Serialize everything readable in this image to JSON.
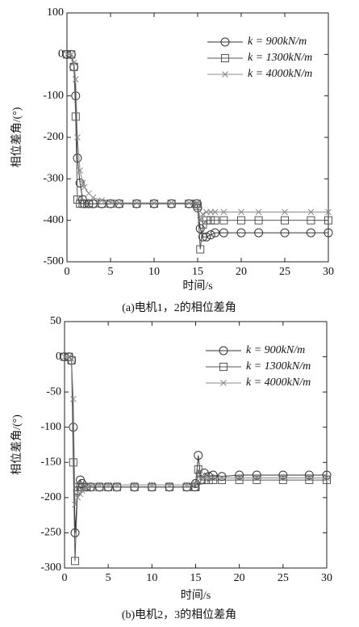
{
  "chart_data": [
    {
      "type": "line",
      "ylabel": "相位差角/(°)",
      "xlabel": "时间/s",
      "caption": "(a)电机1，2的相位差角",
      "x": [
        0,
        0.5,
        0.8,
        1,
        1.2,
        1.5,
        1.8,
        2,
        2.5,
        3,
        4,
        5,
        6,
        8,
        10,
        12,
        14,
        14.9,
        15,
        15.3,
        15.6,
        16,
        16.5,
        17,
        18,
        20,
        22,
        25,
        28,
        30
      ],
      "xlim": [
        0,
        30
      ],
      "xticks": [
        0,
        5,
        10,
        15,
        20,
        25,
        30
      ],
      "ylim": [
        -500,
        100
      ],
      "yticks": [
        -500,
        -400,
        -300,
        -200,
        -100,
        0,
        100
      ],
      "legend": "upper right",
      "series": [
        {
          "name": "k = 900kN/m",
          "color": "#333333",
          "marker": "circle",
          "values": [
            0,
            0,
            -30,
            -100,
            -250,
            -310,
            -350,
            -360,
            -360,
            -360,
            -360,
            -360,
            -360,
            -360,
            -360,
            -360,
            -360,
            -360,
            -370,
            -420,
            -440,
            -440,
            -435,
            -430,
            -430,
            -430,
            -430,
            -430,
            -430,
            -430
          ]
        },
        {
          "name": "k = 1300kN/m",
          "color": "#555555",
          "marker": "square",
          "values": [
            0,
            0,
            -30,
            -150,
            -350,
            -360,
            -360,
            -360,
            -360,
            -360,
            -360,
            -360,
            -360,
            -360,
            -360,
            -360,
            -360,
            -360,
            -365,
            -470,
            -410,
            -400,
            -400,
            -400,
            -400,
            -400,
            -400,
            -400,
            -400,
            -400
          ]
        },
        {
          "name": "k = 4000kN/m",
          "color": "#888888",
          "marker": "x",
          "values": [
            0,
            0,
            -20,
            -60,
            -200,
            -280,
            -310,
            -320,
            -335,
            -345,
            -352,
            -356,
            -358,
            -358,
            -358,
            -358,
            -358,
            -358,
            -360,
            -400,
            -385,
            -380,
            -380,
            -380,
            -380,
            -380,
            -380,
            -380,
            -380,
            -380
          ]
        }
      ]
    },
    {
      "type": "line",
      "ylabel": "相位差角/(°)",
      "xlabel": "时间/s",
      "caption": "(b)电机2，3的相位差角",
      "x": [
        0,
        0.5,
        0.8,
        1,
        1.2,
        1.5,
        1.8,
        2,
        2.5,
        3,
        4,
        5,
        6,
        8,
        10,
        12,
        14,
        14.9,
        15,
        15.3,
        15.6,
        16,
        16.5,
        17,
        18,
        20,
        22,
        25,
        28,
        30
      ],
      "xlim": [
        0,
        30
      ],
      "xticks": [
        0,
        5,
        10,
        15,
        20,
        25,
        30
      ],
      "ylim": [
        -300,
        50
      ],
      "yticks": [
        -300,
        -250,
        -200,
        -150,
        -100,
        -50,
        0,
        50
      ],
      "legend": "upper right",
      "series": [
        {
          "name": "k = 900kN/m",
          "color": "#333333",
          "marker": "circle",
          "values": [
            0,
            0,
            -5,
            -100,
            -250,
            -190,
            -175,
            -180,
            -185,
            -185,
            -185,
            -185,
            -185,
            -185,
            -185,
            -185,
            -185,
            -185,
            -180,
            -140,
            -175,
            -165,
            -170,
            -168,
            -170,
            -168,
            -168,
            -168,
            -168,
            -168
          ]
        },
        {
          "name": "k = 1300kN/m",
          "color": "#555555",
          "marker": "square",
          "values": [
            0,
            0,
            -5,
            -150,
            -290,
            -185,
            -185,
            -185,
            -185,
            -185,
            -185,
            -185,
            -185,
            -185,
            -185,
            -185,
            -185,
            -185,
            -185,
            -160,
            -175,
            -175,
            -175,
            -175,
            -175,
            -175,
            -175,
            -175,
            -175,
            -175
          ]
        },
        {
          "name": "k = 4000kN/m",
          "color": "#888888",
          "marker": "x",
          "values": [
            0,
            0,
            -3,
            -60,
            -210,
            -200,
            -195,
            -190,
            -185,
            -183,
            -182,
            -182,
            -182,
            -182,
            -182,
            -182,
            -182,
            -182,
            -180,
            -170,
            -172,
            -172,
            -172,
            -172,
            -172,
            -172,
            -172,
            -172,
            -172,
            -172
          ]
        }
      ]
    }
  ]
}
